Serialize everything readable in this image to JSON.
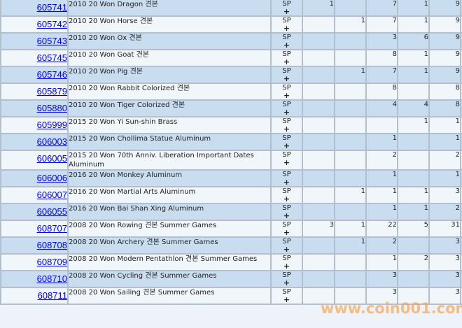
{
  "grade_label": "SP",
  "plus_label": "+",
  "watermark": "www.coin001.com",
  "rows": [
    {
      "id": "605741",
      "desc": "2010 20 Won Dragon 견본",
      "counts": [
        "1",
        "",
        "7",
        "1",
        "9"
      ]
    },
    {
      "id": "605742",
      "desc": "2010 20 Won Horse 견본",
      "counts": [
        "",
        "1",
        "7",
        "1",
        "9"
      ]
    },
    {
      "id": "605743",
      "desc": "2010 20 Won Ox 견본",
      "counts": [
        "",
        "",
        "3",
        "6",
        "9"
      ]
    },
    {
      "id": "605745",
      "desc": "2010 20 Won Goat 견본",
      "counts": [
        "",
        "",
        "8",
        "1",
        "9"
      ]
    },
    {
      "id": "605746",
      "desc": "2010 20 Won Pig 견본",
      "counts": [
        "",
        "1",
        "7",
        "1",
        "9"
      ]
    },
    {
      "id": "605879",
      "desc": "2010 20 Won Rabbit Colorized 견본",
      "counts": [
        "",
        "",
        "8",
        "",
        "8"
      ]
    },
    {
      "id": "605880",
      "desc": "2010 20 Won Tiger Colorized 견본",
      "counts": [
        "",
        "",
        "4",
        "4",
        "8"
      ]
    },
    {
      "id": "605999",
      "desc": "2015 20 Won Yi Sun-shin Brass",
      "counts": [
        "",
        "",
        "",
        "1",
        "1"
      ]
    },
    {
      "id": "606003",
      "desc": "2015 20 Won Chollima Statue Aluminum",
      "counts": [
        "",
        "",
        "1",
        "",
        "1"
      ]
    },
    {
      "id": "606005",
      "desc": "2015 20 Won 70th Anniv. Liberation Important Dates Aluminum",
      "counts": [
        "",
        "",
        "2",
        "",
        "2"
      ]
    },
    {
      "id": "606006",
      "desc": "2016 20 Won Monkey Aluminum",
      "counts": [
        "",
        "",
        "1",
        "",
        "1"
      ]
    },
    {
      "id": "606007",
      "desc": "2016 20 Won Martial Arts Aluminum",
      "counts": [
        "",
        "1",
        "1",
        "1",
        "3"
      ]
    },
    {
      "id": "606055",
      "desc": "2016 20 Won Bai Shan Xing Aluminum",
      "counts": [
        "",
        "",
        "1",
        "1",
        "2"
      ]
    },
    {
      "id": "608707",
      "desc": "2008 20 Won Rowing 견본 Summer Games",
      "counts": [
        "3",
        "1",
        "22",
        "5",
        "31"
      ]
    },
    {
      "id": "608708",
      "desc": "2008 20 Won Archery 견본 Summer Games",
      "counts": [
        "",
        "1",
        "2",
        "",
        "3"
      ]
    },
    {
      "id": "608709",
      "desc": "2008 20 Won Modern Pentathlon 견본 Summer Games",
      "counts": [
        "",
        "",
        "1",
        "2",
        "3"
      ]
    },
    {
      "id": "608710",
      "desc": "2008 20 Won Cycling 견본 Summer Games",
      "counts": [
        "",
        "",
        "3",
        "",
        "3"
      ]
    },
    {
      "id": "608711",
      "desc": "2008 20 Won Sailing 견본 Summer Games",
      "counts": [
        "",
        "",
        "3",
        "",
        "3"
      ]
    }
  ]
}
